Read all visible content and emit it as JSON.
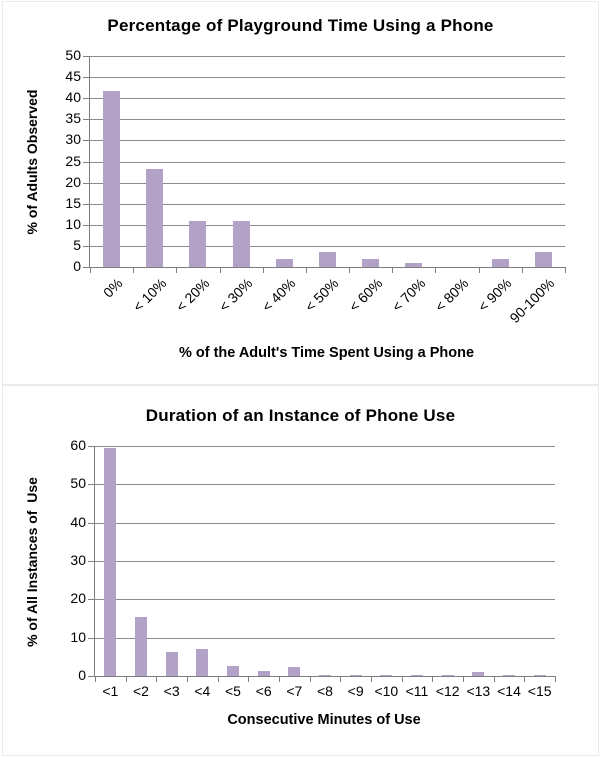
{
  "page": {
    "background": "#ffffff"
  },
  "style": {
    "bar_color": "#b2a2c7",
    "grid_color": "#8c8c8c",
    "axis_color": "#7f7f7f",
    "text_color": "#000000",
    "panel_border": "#ebebeb"
  },
  "chart_data": [
    {
      "type": "bar",
      "title": "Percentage of Playground Time Using a Phone",
      "xlabel": "% of the Adult's Time Spent Using a Phone",
      "ylabel": "% of Adults Observed",
      "categories": [
        "0%",
        "< 10%",
        "< 20%",
        "< 30%",
        "< 40%",
        "< 50%",
        "< 60%",
        "< 70%",
        "< 80%",
        "< 90%",
        "90-100%"
      ],
      "values": [
        41.8,
        23.3,
        10.8,
        10.8,
        1.8,
        3.5,
        1.8,
        0.9,
        0,
        1.8,
        3.5
      ],
      "ylim": [
        0,
        50
      ],
      "ytick_step": 5,
      "ytick_labels": [
        "0",
        "5",
        "10",
        "15",
        "20",
        "25",
        "30",
        "35",
        "40",
        "45",
        "50"
      ],
      "grid": true,
      "legend": "none",
      "xlabel_rotation": -45
    },
    {
      "type": "bar",
      "title": "Duration of an Instance of Phone Use",
      "xlabel": "Consecutive Minutes of Use",
      "ylabel": "% of All Instances of  Use",
      "categories": [
        "<1",
        "<2",
        "<3",
        "<4",
        "<5",
        "<6",
        "<7",
        "<8",
        "<9",
        "<10",
        "<11",
        "<12",
        "<13",
        "<14",
        "<15"
      ],
      "values": [
        59.5,
        15.5,
        6.3,
        7.0,
        2.7,
        1.2,
        2.3,
        0.3,
        0.3,
        0.3,
        0.3,
        0.3,
        1.1,
        0.3,
        0.3
      ],
      "ylim": [
        0,
        60
      ],
      "ytick_step": 10,
      "ytick_labels": [
        "0",
        "10",
        "20",
        "30",
        "40",
        "50",
        "60"
      ],
      "grid": true,
      "legend": "none",
      "xlabel_rotation": 0
    }
  ]
}
